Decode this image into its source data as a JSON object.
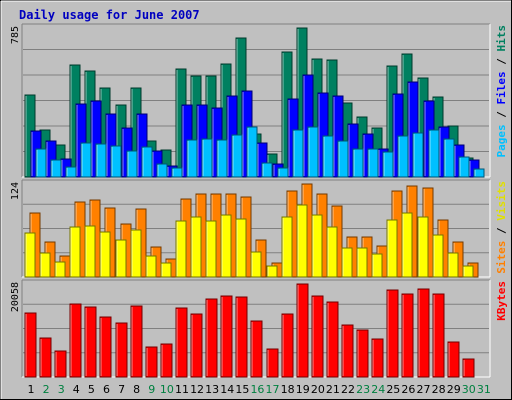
{
  "chart_data": [
    {
      "type": "bar",
      "title": "Daily usage for June 2007",
      "panel": "pages-files-hits",
      "ymax_label": "785",
      "ylim": [
        0,
        785
      ],
      "categories": [
        "1",
        "2",
        "3",
        "4",
        "5",
        "6",
        "7",
        "8",
        "9",
        "10",
        "11",
        "12",
        "13",
        "14",
        "15",
        "16",
        "17",
        "18",
        "19",
        "20",
        "21",
        "22",
        "23",
        "24",
        "25",
        "26",
        "27",
        "28",
        "29",
        "30",
        "31"
      ],
      "series": [
        {
          "name": "Hits",
          "color": "#008060",
          "values": [
            430,
            245,
            170,
            590,
            560,
            470,
            380,
            470,
            190,
            140,
            570,
            530,
            530,
            595,
            730,
            225,
            120,
            660,
            785,
            620,
            615,
            390,
            315,
            260,
            585,
            650,
            520,
            420,
            270,
            100,
            0
          ]
        },
        {
          "name": "Files",
          "color": "#0000ff",
          "values": [
            240,
            190,
            95,
            385,
            400,
            330,
            260,
            330,
            135,
            60,
            380,
            380,
            365,
            425,
            455,
            180,
            70,
            410,
            540,
            440,
            425,
            280,
            225,
            150,
            435,
            500,
            400,
            265,
            170,
            90,
            0
          ]
        },
        {
          "name": "Pages",
          "color": "#00c0ff",
          "values": [
            145,
            90,
            55,
            180,
            175,
            165,
            135,
            160,
            70,
            50,
            195,
            200,
            195,
            220,
            265,
            75,
            50,
            245,
            265,
            215,
            190,
            145,
            145,
            130,
            215,
            230,
            245,
            200,
            105,
            40,
            0
          ]
        }
      ],
      "side_labels": {
        "pages": "Pages",
        "files": "Files",
        "hits": "Hits",
        "sep": " / "
      }
    },
    {
      "type": "bar",
      "panel": "visits-sites",
      "ymax_label": "124",
      "ylim": [
        0,
        124
      ],
      "categories": [
        "1",
        "2",
        "3",
        "4",
        "5",
        "6",
        "7",
        "8",
        "9",
        "10",
        "11",
        "12",
        "13",
        "14",
        "15",
        "16",
        "17",
        "18",
        "19",
        "20",
        "21",
        "22",
        "23",
        "24",
        "25",
        "26",
        "27",
        "28",
        "29",
        "30",
        "31"
      ],
      "series": [
        {
          "name": "Visits",
          "color": "#ff8000",
          "values": [
            85,
            47,
            28,
            100,
            102,
            92,
            71,
            91,
            40,
            24,
            104,
            110,
            110,
            111,
            107,
            49,
            19,
            114,
            124,
            111,
            95,
            53,
            53,
            42,
            114,
            121,
            118,
            76,
            47,
            19,
            0
          ]
        },
        {
          "name": "Sites",
          "color": "#ffff00",
          "values": [
            58,
            32,
            20,
            66,
            68,
            60,
            49,
            62,
            28,
            18,
            75,
            80,
            75,
            82,
            77,
            34,
            14,
            80,
            96,
            82,
            66,
            38,
            38,
            30,
            76,
            85,
            80,
            56,
            32,
            14,
            0
          ]
        }
      ],
      "side_labels": {
        "sites": "Sites",
        "visits": "Visits",
        "sep": " / "
      }
    },
    {
      "type": "bar",
      "panel": "kbytes",
      "ymax_label": "20058",
      "ylim": [
        0,
        20058
      ],
      "categories": [
        "1",
        "2",
        "3",
        "4",
        "5",
        "6",
        "7",
        "8",
        "9",
        "10",
        "11",
        "12",
        "13",
        "14",
        "15",
        "16",
        "17",
        "18",
        "19",
        "20",
        "21",
        "22",
        "23",
        "24",
        "25",
        "26",
        "27",
        "28",
        "29",
        "30",
        "31"
      ],
      "series": [
        {
          "name": "KBytes",
          "color": "#ff0000",
          "values": [
            13700,
            8400,
            5700,
            15800,
            15000,
            12900,
            11600,
            15300,
            6500,
            7100,
            14900,
            13600,
            16800,
            17400,
            17200,
            12000,
            6100,
            13600,
            20058,
            17500,
            16200,
            11300,
            10200,
            8300,
            18700,
            18000,
            18900,
            17800,
            7500,
            3900,
            0
          ]
        }
      ],
      "side_labels": {
        "kbytes": "KBytes"
      }
    }
  ],
  "colors": {
    "background": "#c0c0c0",
    "weekday_label": "#000000",
    "weekend_label": "#008040",
    "title": "#0000c0"
  },
  "weekend_days": [
    2,
    3,
    9,
    10,
    16,
    17,
    23,
    24,
    30,
    31
  ]
}
